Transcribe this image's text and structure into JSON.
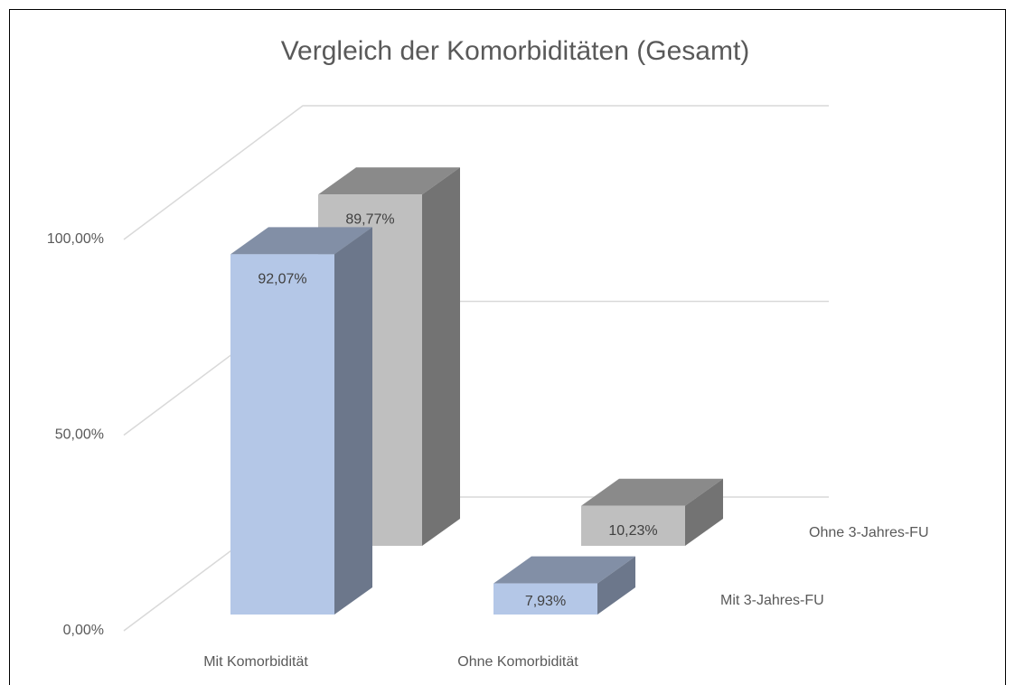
{
  "chart_data": {
    "type": "bar3d",
    "title": "Vergleich der Komorbiditäten (Gesamt)",
    "categories": [
      "Mit Komorbidität",
      "Ohne Komorbidität"
    ],
    "series": [
      {
        "name": "Mit 3-Jahres-FU",
        "color": "#b4c7e7",
        "values": [
          92.07,
          7.93
        ],
        "value_labels": [
          "92,07%",
          "7,93%"
        ]
      },
      {
        "name": "Ohne 3-Jahres-FU",
        "color": "#bfbfbf",
        "values": [
          89.77,
          10.23
        ],
        "value_labels": [
          "89,77%",
          "10,23%"
        ]
      }
    ],
    "ylim": [
      0,
      100
    ],
    "yticks": [
      {
        "value": 0,
        "label": "0,00%"
      },
      {
        "value": 50,
        "label": "50,00%"
      },
      {
        "value": 100,
        "label": "100,00%"
      }
    ],
    "grid": true
  }
}
